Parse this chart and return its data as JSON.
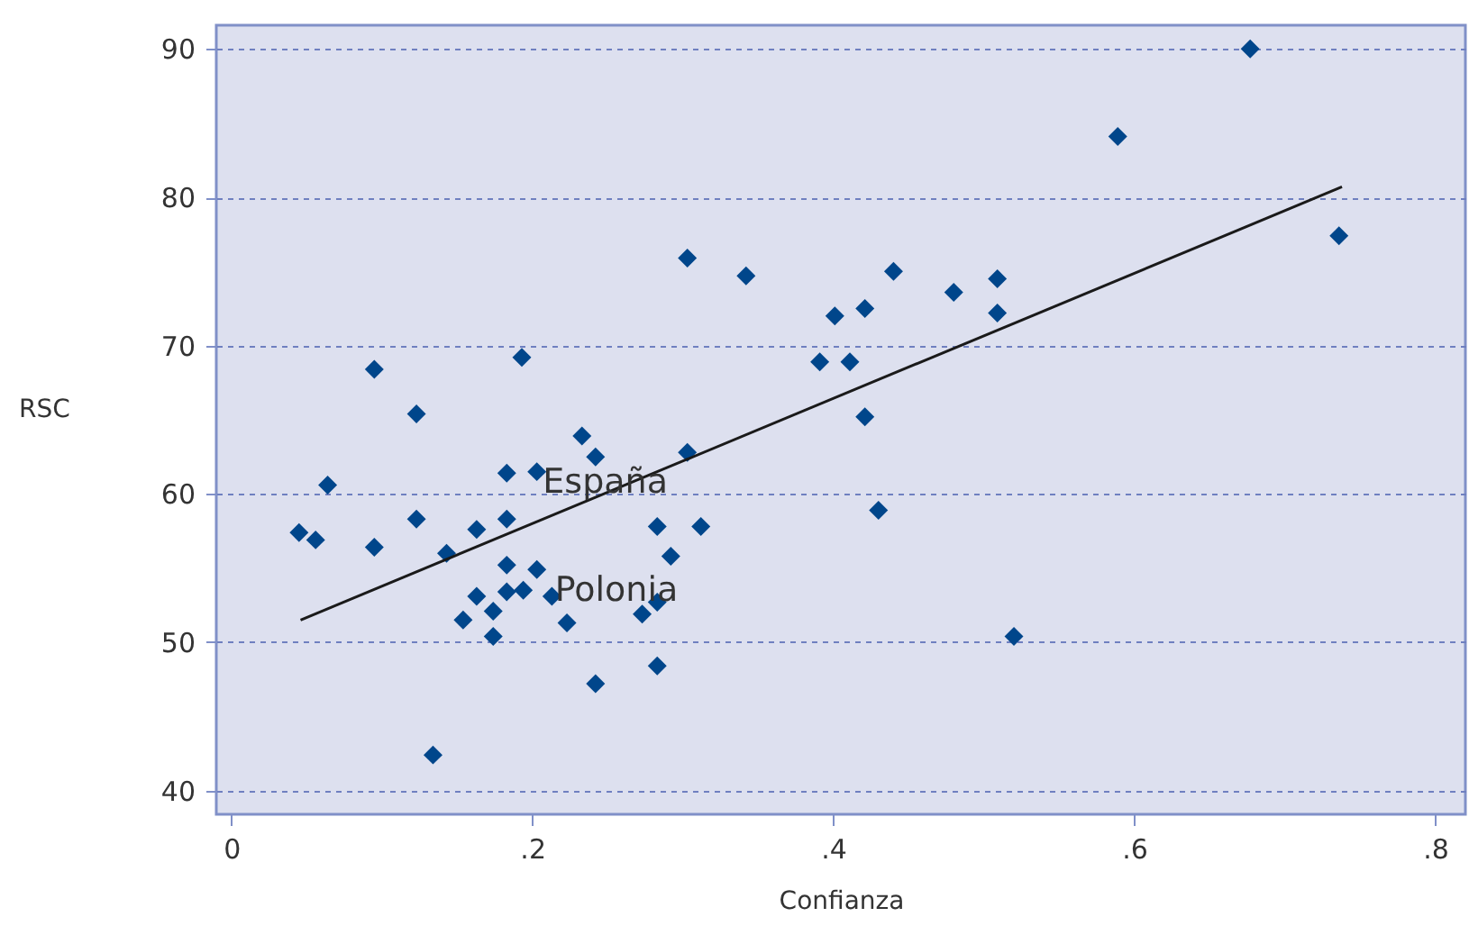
{
  "chart_data": {
    "type": "scatter",
    "xlabel": "Confianza",
    "ylabel": "RSC",
    "xlim": [
      -0.01,
      0.82
    ],
    "ylim": [
      38.4,
      91.6
    ],
    "xticks": [
      {
        "value": 0,
        "label": "0"
      },
      {
        "value": 0.2,
        "label": ".2"
      },
      {
        "value": 0.4,
        "label": ".4"
      },
      {
        "value": 0.6,
        "label": ".6"
      },
      {
        "value": 0.8,
        "label": ".8"
      }
    ],
    "yticks": [
      40,
      50,
      60,
      70,
      80,
      90
    ],
    "grid": "y",
    "series": [
      {
        "color": "#00468b",
        "marker": "diamond",
        "x": [
          0.045,
          0.056,
          0.064,
          0.095,
          0.095,
          0.123,
          0.123,
          0.143,
          0.134,
          0.154,
          0.163,
          0.163,
          0.174,
          0.174,
          0.183,
          0.183,
          0.183,
          0.183,
          0.193,
          0.194,
          0.203,
          0.203,
          0.213,
          0.223,
          0.233,
          0.242,
          0.242,
          0.273,
          0.283,
          0.283,
          0.283,
          0.292,
          0.303,
          0.303,
          0.312,
          0.342,
          0.391,
          0.401,
          0.411,
          0.421,
          0.421,
          0.43,
          0.44,
          0.48,
          0.509,
          0.509,
          0.52,
          0.589,
          0.677,
          0.736
        ],
        "values": [
          57.4,
          56.9,
          60.6,
          68.4,
          56.4,
          65.4,
          58.3,
          56.0,
          42.4,
          51.5,
          57.6,
          53.1,
          52.1,
          50.4,
          61.4,
          58.3,
          55.2,
          53.4,
          69.2,
          53.5,
          61.5,
          54.9,
          53.1,
          51.3,
          63.9,
          62.5,
          47.2,
          51.9,
          57.8,
          52.7,
          48.4,
          55.8,
          62.8,
          75.9,
          57.8,
          74.7,
          68.9,
          72.0,
          68.9,
          72.5,
          65.2,
          58.9,
          75.0,
          73.6,
          74.5,
          72.2,
          50.4,
          84.1,
          90.0,
          77.4
        ]
      },
      {
        "type": "line",
        "color": "#1a1a1a",
        "x": [
          0.046,
          0.738
        ],
        "values": [
          51.5,
          80.7
        ]
      }
    ],
    "annotations": [
      {
        "text": "España",
        "x": 0.207,
        "y": 60.8
      },
      {
        "text": "Polonia",
        "x": 0.215,
        "y": 53.5
      }
    ]
  }
}
